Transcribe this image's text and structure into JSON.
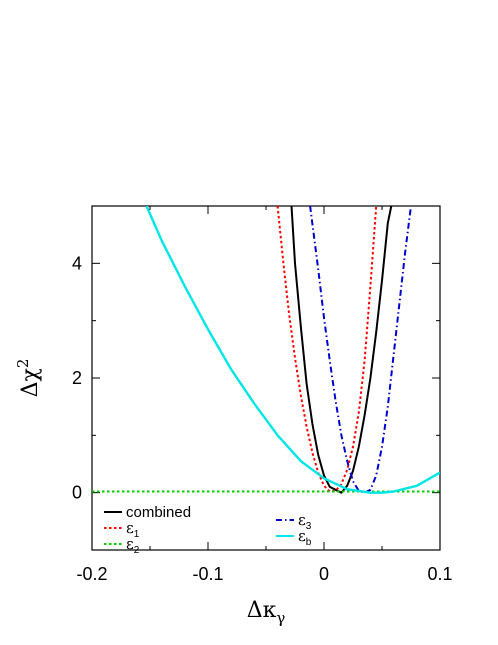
{
  "chart_data": {
    "type": "line",
    "xlabel": "Δκγ",
    "xlabel_main": "Δκ",
    "xlabel_sub": "γ",
    "ylabel": "Δχ2",
    "ylabel_main": "Δχ",
    "ylabel_sup": "2",
    "xlim": [
      -0.2,
      0.1
    ],
    "ylim": [
      -1,
      5
    ],
    "xticks": [
      -0.2,
      -0.1,
      0,
      0.1
    ],
    "xtick_labels": [
      "-0.2",
      "-0.1",
      "0",
      "0.1"
    ],
    "yticks": [
      0,
      2,
      4
    ],
    "ytick_labels": [
      "0",
      "2",
      "4"
    ],
    "grid": false,
    "legend_position": "bottom",
    "series": [
      {
        "name": "combined",
        "legend_main": "combined",
        "legend_sub": "",
        "color": "#000000",
        "dash": "solid",
        "x": [
          -0.028,
          -0.025,
          -0.02,
          -0.015,
          -0.01,
          -0.005,
          0.0,
          0.005,
          0.01,
          0.015,
          0.02,
          0.025,
          0.03,
          0.035,
          0.04,
          0.045,
          0.05,
          0.055,
          0.058
        ],
        "y": [
          5.0,
          4.0,
          2.9,
          1.9,
          1.2,
          0.66,
          0.3,
          0.1,
          0.05,
          0.0,
          0.12,
          0.38,
          0.8,
          1.35,
          2.0,
          2.8,
          3.7,
          4.7,
          5.0
        ]
      },
      {
        "name": "ε1",
        "legend_main": "ε",
        "legend_sub": "1",
        "color": "#ff0000",
        "dash": "dotted",
        "x": [
          -0.04,
          -0.035,
          -0.03,
          -0.025,
          -0.02,
          -0.015,
          -0.01,
          -0.005,
          0.0,
          0.005,
          0.01,
          0.015,
          0.02,
          0.025,
          0.03,
          0.035,
          0.04,
          0.045
        ],
        "y": [
          5.0,
          4.0,
          3.1,
          2.35,
          1.7,
          1.15,
          0.7,
          0.35,
          0.12,
          0.02,
          0.03,
          0.15,
          0.4,
          0.8,
          1.4,
          2.3,
          3.6,
          5.0
        ]
      },
      {
        "name": "ε2",
        "legend_main": "ε",
        "legend_sub": "2",
        "color": "#00cc00",
        "dash": "dotted",
        "x": [
          -0.2,
          0.1
        ],
        "y": [
          0.02,
          0.02
        ]
      },
      {
        "name": "ε3",
        "legend_main": "ε",
        "legend_sub": "3",
        "color": "#0000cc",
        "dash": "dashdot",
        "x": [
          -0.012,
          -0.005,
          0.0,
          0.005,
          0.01,
          0.015,
          0.02,
          0.025,
          0.03,
          0.035,
          0.04,
          0.045,
          0.05,
          0.055,
          0.06,
          0.065,
          0.07,
          0.075
        ],
        "y": [
          5.0,
          3.9,
          3.05,
          2.3,
          1.6,
          1.0,
          0.55,
          0.2,
          0.03,
          0.0,
          0.05,
          0.3,
          0.8,
          1.5,
          2.4,
          3.3,
          4.2,
          5.0
        ]
      },
      {
        "name": "εb",
        "legend_main": "ε",
        "legend_sub": "b",
        "color": "#00e5e5",
        "dash": "solid",
        "x": [
          -0.153,
          -0.14,
          -0.12,
          -0.1,
          -0.08,
          -0.06,
          -0.04,
          -0.02,
          0.0,
          0.02,
          0.04,
          0.05,
          0.06,
          0.08,
          0.1
        ],
        "y": [
          5.0,
          4.4,
          3.6,
          2.85,
          2.15,
          1.55,
          1.0,
          0.55,
          0.25,
          0.06,
          0.0,
          0.0,
          0.02,
          0.12,
          0.35
        ]
      }
    ]
  }
}
